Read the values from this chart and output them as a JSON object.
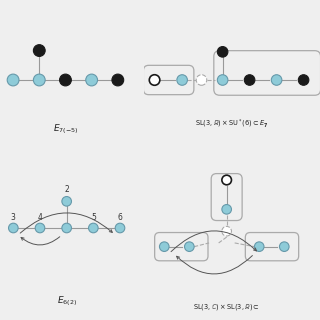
{
  "bg": "#efefef",
  "lc": "#8ecbd8",
  "bc": "#1a1a1a",
  "wc": "#ffffff",
  "ec": "#999999",
  "box_c": "#aaaaaa",
  "node_r": 0.09,
  "lw": 0.8
}
